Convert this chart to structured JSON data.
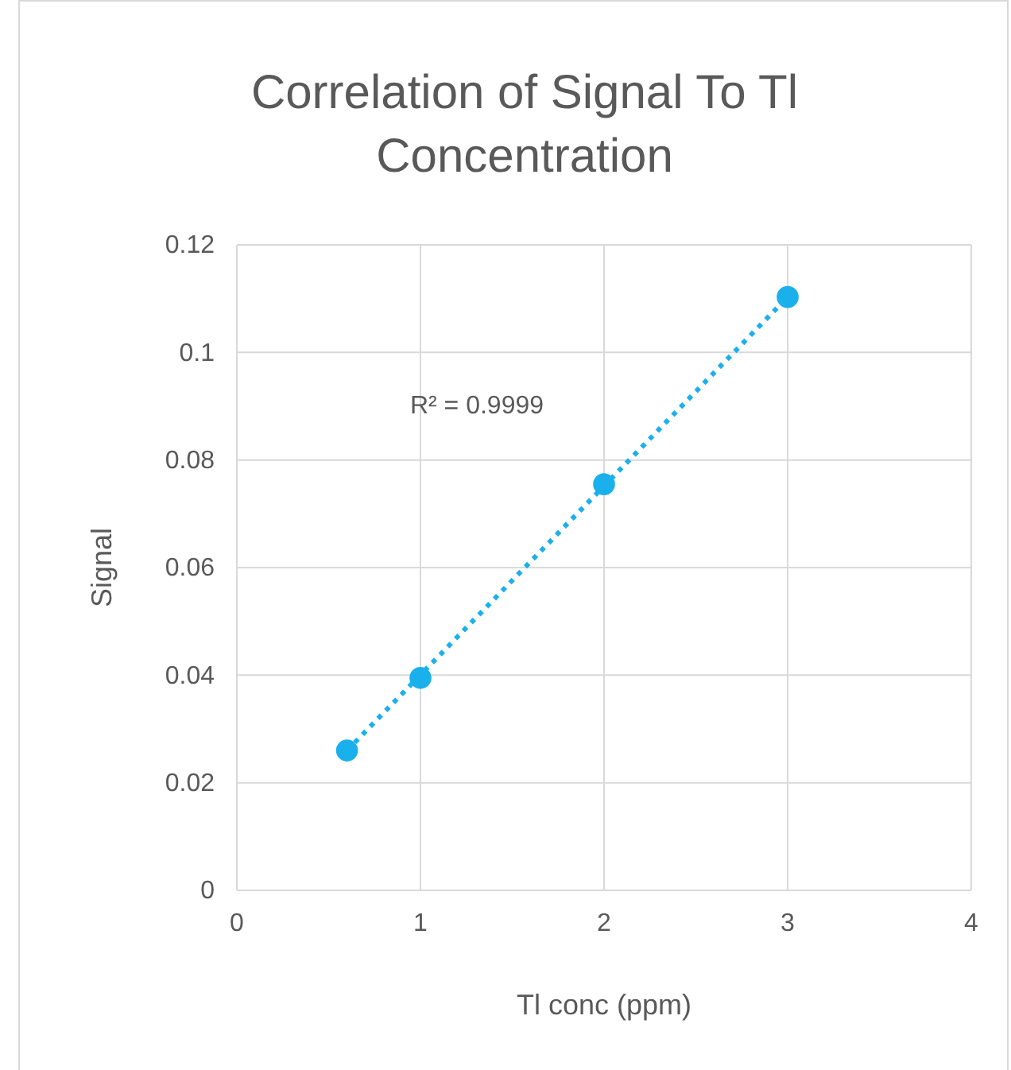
{
  "chart_data": {
    "type": "scatter",
    "title": "Correlation of Signal To Tl Concentration",
    "xlabel": "Tl conc (ppm)",
    "ylabel": "Signal",
    "series": [
      {
        "color": "#1ab0ec",
        "x": [
          0.6,
          1,
          2,
          3
        ],
        "values": [
          0.026,
          0.0395,
          0.0755,
          0.1103
        ],
        "marker": "circle"
      },
      {
        "type": "line",
        "color": "#1ab0ec",
        "x": [
          0.6,
          3
        ],
        "values": [
          0.026,
          0.1103
        ],
        "line_style": "dotted"
      }
    ],
    "annotations": [
      "R² = 0.9999"
    ],
    "xlim": [
      0,
      4
    ],
    "xticks": [
      0,
      1,
      2,
      3,
      4
    ],
    "ylim": [
      0,
      0.12
    ],
    "yticks": [
      0,
      0.02,
      0.04,
      0.06,
      0.08,
      0.1,
      0.12
    ],
    "grid": true
  }
}
